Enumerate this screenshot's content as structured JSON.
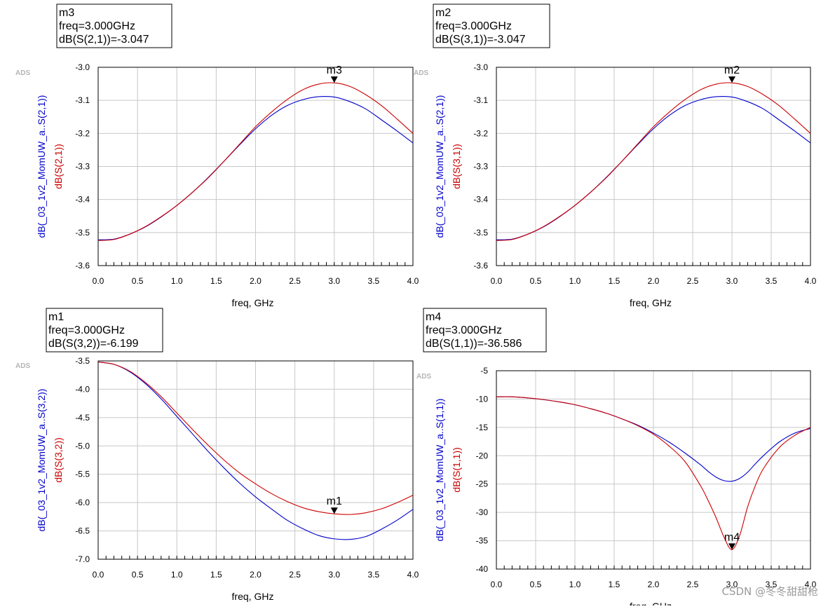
{
  "chart_data": [
    {
      "type": "line",
      "xlabel": "freq, GHz",
      "ylabel_blue": "dB(_03_1v2_MomUW_a..S(2,1))",
      "ylabel_red": "dB(S(2,1))",
      "watermark": "ADS",
      "xlim": [
        0.0,
        4.0
      ],
      "ylim": [
        -3.6,
        -3.0
      ],
      "xticks": [
        "0.0",
        "0.5",
        "1.0",
        "1.5",
        "2.0",
        "2.5",
        "3.0",
        "3.5",
        "4.0"
      ],
      "yticks": [
        "-3.0",
        "-3.1",
        "-3.2",
        "-3.3",
        "-3.4",
        "-3.5",
        "-3.6"
      ],
      "marker": {
        "name": "m3",
        "x": 3.0,
        "y": -3.047,
        "lines": [
          "m3",
          "freq=3.000GHz",
          "dB(S(2,1))=-3.047"
        ]
      },
      "series": [
        {
          "name": "dB(S(2,1))",
          "color": "#cc0000",
          "x": [
            0,
            0.2,
            0.4,
            0.6,
            0.8,
            1.0,
            1.2,
            1.4,
            1.6,
            1.8,
            2.0,
            2.2,
            2.4,
            2.6,
            2.8,
            3.0,
            3.2,
            3.4,
            3.6,
            3.8,
            4.0
          ],
          "y": [
            -3.524,
            -3.521,
            -3.505,
            -3.482,
            -3.452,
            -3.418,
            -3.378,
            -3.334,
            -3.284,
            -3.232,
            -3.18,
            -3.136,
            -3.098,
            -3.068,
            -3.051,
            -3.047,
            -3.058,
            -3.083,
            -3.116,
            -3.157,
            -3.2
          ]
        },
        {
          "name": "dB(_03_1v2_MomUW_a..S(2,1))",
          "color": "#0000cc",
          "x": [
            0,
            0.2,
            0.4,
            0.6,
            0.8,
            1.0,
            1.2,
            1.4,
            1.6,
            1.8,
            2.0,
            2.2,
            2.4,
            2.6,
            2.8,
            3.0,
            3.2,
            3.4,
            3.6,
            3.8,
            4.0
          ],
          "y": [
            -3.522,
            -3.52,
            -3.505,
            -3.483,
            -3.453,
            -3.418,
            -3.378,
            -3.333,
            -3.284,
            -3.234,
            -3.186,
            -3.146,
            -3.116,
            -3.098,
            -3.089,
            -3.09,
            -3.104,
            -3.126,
            -3.159,
            -3.193,
            -3.229
          ]
        }
      ]
    },
    {
      "type": "line",
      "xlabel": "freq, GHz",
      "ylabel_blue": "dB(_03_1v2_MomUW_a..S(2,1))",
      "ylabel_red": "dB(S(3,1))",
      "watermark": "ADS",
      "xlim": [
        0.0,
        4.0
      ],
      "ylim": [
        -3.6,
        -3.0
      ],
      "xticks": [
        "0.0",
        "0.5",
        "1.0",
        "1.5",
        "2.0",
        "2.5",
        "3.0",
        "3.5",
        "4.0"
      ],
      "yticks": [
        "-3.0",
        "-3.1",
        "-3.2",
        "-3.3",
        "-3.4",
        "-3.5",
        "-3.6"
      ],
      "marker": {
        "name": "m2",
        "x": 3.0,
        "y": -3.047,
        "lines": [
          "m2",
          "freq=3.000GHz",
          "dB(S(3,1))=-3.047"
        ]
      },
      "series": [
        {
          "name": "dB(S(3,1))",
          "color": "#cc0000",
          "x": [
            0,
            0.2,
            0.4,
            0.6,
            0.8,
            1.0,
            1.2,
            1.4,
            1.6,
            1.8,
            2.0,
            2.2,
            2.4,
            2.6,
            2.8,
            3.0,
            3.2,
            3.4,
            3.6,
            3.8,
            4.0
          ],
          "y": [
            -3.524,
            -3.521,
            -3.505,
            -3.482,
            -3.452,
            -3.418,
            -3.378,
            -3.334,
            -3.284,
            -3.232,
            -3.18,
            -3.136,
            -3.098,
            -3.068,
            -3.051,
            -3.047,
            -3.058,
            -3.083,
            -3.116,
            -3.157,
            -3.2
          ]
        },
        {
          "name": "dB(_03_1v2_MomUW_a..S(2,1))",
          "color": "#0000cc",
          "x": [
            0,
            0.2,
            0.4,
            0.6,
            0.8,
            1.0,
            1.2,
            1.4,
            1.6,
            1.8,
            2.0,
            2.2,
            2.4,
            2.6,
            2.8,
            3.0,
            3.2,
            3.4,
            3.6,
            3.8,
            4.0
          ],
          "y": [
            -3.522,
            -3.52,
            -3.505,
            -3.483,
            -3.453,
            -3.418,
            -3.378,
            -3.333,
            -3.284,
            -3.234,
            -3.186,
            -3.146,
            -3.116,
            -3.098,
            -3.089,
            -3.09,
            -3.104,
            -3.126,
            -3.159,
            -3.193,
            -3.229
          ]
        }
      ]
    },
    {
      "type": "line",
      "xlabel": "freq, GHz",
      "ylabel_blue": "dB(_03_1v2_MomUW_a..S(3,2))",
      "ylabel_red": "dB(S(3,2))",
      "watermark": "ADS",
      "xlim": [
        0.0,
        4.0
      ],
      "ylim": [
        -7.0,
        -3.5
      ],
      "xticks": [
        "0.0",
        "0.5",
        "1.0",
        "1.5",
        "2.0",
        "2.5",
        "3.0",
        "3.5",
        "4.0"
      ],
      "yticks": [
        "-3.5",
        "-4.0",
        "-4.5",
        "-5.0",
        "-5.5",
        "-6.0",
        "-6.5",
        "-7.0"
      ],
      "marker": {
        "name": "m1",
        "x": 3.0,
        "y": -6.199,
        "lines": [
          "m1",
          "freq=3.000GHz",
          "dB(S(3,2))=-6.199"
        ]
      },
      "series": [
        {
          "name": "dB(S(3,2))",
          "color": "#cc0000",
          "x": [
            0,
            0.2,
            0.4,
            0.6,
            0.8,
            1.0,
            1.2,
            1.4,
            1.6,
            1.8,
            2.0,
            2.2,
            2.4,
            2.6,
            2.8,
            3.0,
            3.2,
            3.4,
            3.6,
            3.8,
            4.0
          ],
          "y": [
            -3.52,
            -3.56,
            -3.68,
            -3.88,
            -4.13,
            -4.42,
            -4.71,
            -4.99,
            -5.25,
            -5.48,
            -5.67,
            -5.84,
            -5.98,
            -6.09,
            -6.16,
            -6.199,
            -6.21,
            -6.18,
            -6.11,
            -6.0,
            -5.87
          ]
        },
        {
          "name": "dB(_03_1v2_MomUW_a..S(3,2))",
          "color": "#0000cc",
          "x": [
            0,
            0.2,
            0.4,
            0.6,
            0.8,
            1.0,
            1.2,
            1.4,
            1.6,
            1.8,
            2.0,
            2.2,
            2.4,
            2.6,
            2.8,
            3.0,
            3.2,
            3.4,
            3.6,
            3.8,
            4.0
          ],
          "y": [
            -3.52,
            -3.56,
            -3.69,
            -3.9,
            -4.17,
            -4.48,
            -4.79,
            -5.1,
            -5.39,
            -5.66,
            -5.9,
            -6.11,
            -6.31,
            -6.46,
            -6.58,
            -6.64,
            -6.65,
            -6.6,
            -6.47,
            -6.31,
            -6.12
          ]
        }
      ]
    },
    {
      "type": "line",
      "xlabel": "freq, GHz",
      "ylabel_blue": "dB(_03_1v2_MomUW_a..S(1,1))",
      "ylabel_red": "dB(S(1,1))",
      "watermark": "ADS",
      "xlim": [
        0.0,
        4.0
      ],
      "ylim": [
        -40,
        -5
      ],
      "xticks": [
        "0.0",
        "0.5",
        "1.0",
        "1.5",
        "2.0",
        "2.5",
        "3.0",
        "3.5",
        "4.0"
      ],
      "yticks": [
        "-5",
        "-10",
        "-15",
        "-20",
        "-25",
        "-30",
        "-35",
        "-40"
      ],
      "marker": {
        "name": "m4",
        "x": 3.0,
        "y": -36.586,
        "lines": [
          "m4",
          "freq=3.000GHz",
          "dB(S(1,1))=-36.586"
        ]
      },
      "series": [
        {
          "name": "dB(S(1,1))",
          "color": "#cc0000",
          "x": [
            0,
            0.2,
            0.4,
            0.6,
            0.8,
            1.0,
            1.2,
            1.4,
            1.6,
            1.8,
            2.0,
            2.2,
            2.4,
            2.6,
            2.7,
            2.8,
            2.9,
            3.0,
            3.1,
            3.2,
            3.3,
            3.4,
            3.6,
            3.8,
            4.0
          ],
          "y": [
            -9.6,
            -9.6,
            -9.8,
            -10.1,
            -10.5,
            -11.0,
            -11.7,
            -12.5,
            -13.5,
            -14.7,
            -16.2,
            -18.3,
            -21.0,
            -25.3,
            -28.0,
            -31.0,
            -34.4,
            -36.586,
            -34.0,
            -29.0,
            -25.2,
            -22.3,
            -18.6,
            -16.4,
            -15.0
          ]
        },
        {
          "name": "dB(_03_1v2_MomUW_a..S(1,1))",
          "color": "#0000cc",
          "x": [
            0,
            0.2,
            0.4,
            0.6,
            0.8,
            1.0,
            1.2,
            1.4,
            1.6,
            1.8,
            2.0,
            2.2,
            2.4,
            2.6,
            2.7,
            2.8,
            2.9,
            3.0,
            3.1,
            3.2,
            3.3,
            3.4,
            3.6,
            3.8,
            4.0
          ],
          "y": [
            -9.6,
            -9.6,
            -9.8,
            -10.1,
            -10.5,
            -11.0,
            -11.7,
            -12.5,
            -13.5,
            -14.6,
            -16.0,
            -17.6,
            -19.5,
            -21.6,
            -22.8,
            -23.8,
            -24.4,
            -24.5,
            -24.0,
            -22.9,
            -21.4,
            -20.0,
            -17.6,
            -16.0,
            -15.2
          ]
        }
      ]
    }
  ],
  "watermark": "CSDN @冬冬甜甜枪"
}
